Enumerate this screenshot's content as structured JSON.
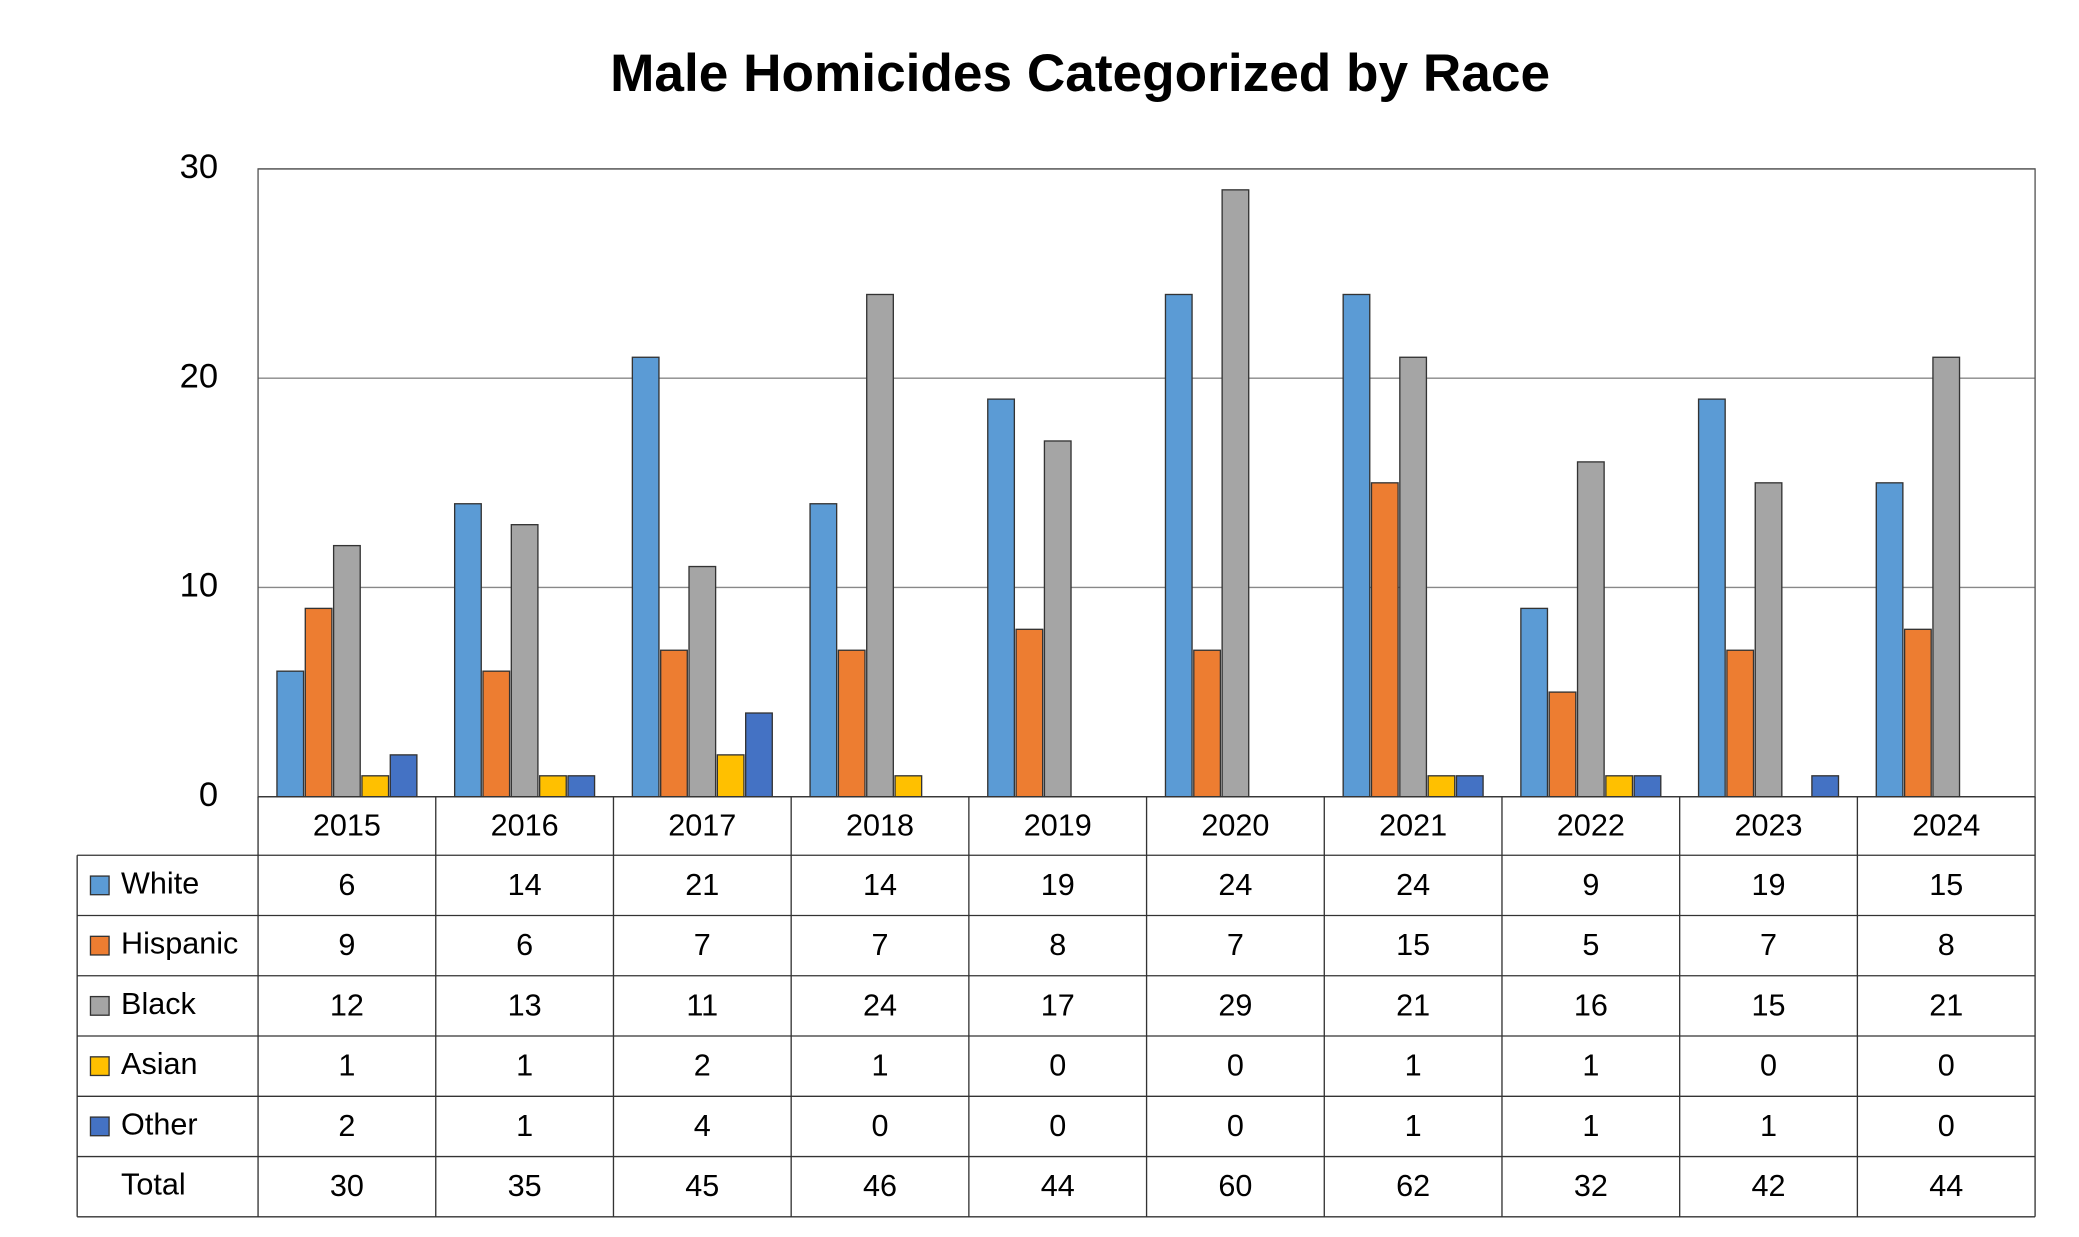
{
  "chart_data": {
    "type": "bar",
    "title": "Male Homicides Categorized by Race",
    "categories": [
      "2015",
      "2016",
      "2017",
      "2018",
      "2019",
      "2020",
      "2021",
      "2022",
      "2023",
      "2024"
    ],
    "series": [
      {
        "name": "White",
        "color": "#5b9bd5",
        "values": [
          6,
          14,
          21,
          14,
          19,
          24,
          24,
          9,
          19,
          15
        ]
      },
      {
        "name": "Hispanic",
        "color": "#ed7d31",
        "values": [
          9,
          6,
          7,
          7,
          8,
          7,
          15,
          5,
          7,
          8
        ]
      },
      {
        "name": "Black",
        "color": "#a5a5a5",
        "values": [
          12,
          13,
          11,
          24,
          17,
          29,
          21,
          16,
          15,
          21
        ]
      },
      {
        "name": "Asian",
        "color": "#ffc000",
        "values": [
          1,
          1,
          2,
          1,
          0,
          0,
          1,
          1,
          0,
          0
        ]
      },
      {
        "name": "Other",
        "color": "#4472c4",
        "values": [
          2,
          1,
          4,
          0,
          0,
          0,
          1,
          1,
          1,
          0
        ]
      }
    ],
    "total_label": "Total",
    "totals": [
      30,
      35,
      45,
      46,
      44,
      60,
      62,
      32,
      42,
      44
    ],
    "ylim": [
      0,
      30
    ],
    "yticks": [
      0,
      10,
      20,
      30
    ],
    "grid": true
  }
}
